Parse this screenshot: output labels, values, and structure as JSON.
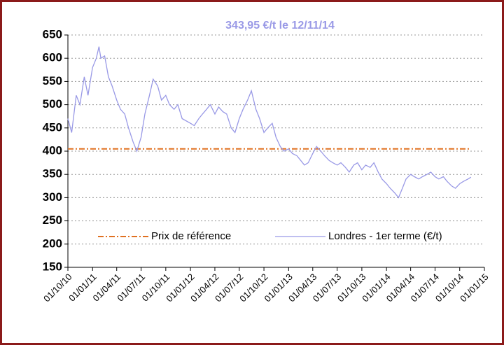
{
  "chart_data": {
    "type": "line",
    "title": "343,95 €/t le 12/11/14",
    "xlim": [
      "01/10/10",
      "01/01/15"
    ],
    "xticks": [
      "01/10/10",
      "01/01/11",
      "01/04/11",
      "01/07/11",
      "01/10/11",
      "01/01/12",
      "01/04/12",
      "01/07/12",
      "01/10/12",
      "01/01/13",
      "01/04/13",
      "01/07/13",
      "01/10/13",
      "01/01/14",
      "01/04/14",
      "01/07/14",
      "01/10/14",
      "01/01/15"
    ],
    "ylim": [
      150,
      650
    ],
    "yticks": [
      150,
      200,
      250,
      300,
      350,
      400,
      450,
      500,
      550,
      600,
      650
    ],
    "grid": true,
    "series": [
      {
        "name": "Prix de référence",
        "color": "#e07020",
        "dash": "dash-dot",
        "x": [
          "01/10/10",
          "12/11/14"
        ],
        "values": [
          405,
          405
        ]
      },
      {
        "name": "Londres - 1er terme (€/t)",
        "color": "#9999e6",
        "x": [
          "01/10/10",
          "15/10/10",
          "01/11/10",
          "15/11/10",
          "01/12/10",
          "15/12/10",
          "01/01/11",
          "15/01/11",
          "25/01/11",
          "01/02/11",
          "15/02/11",
          "01/03/11",
          "15/03/11",
          "01/04/11",
          "15/04/11",
          "01/05/11",
          "15/05/11",
          "01/06/11",
          "15/06/11",
          "01/07/11",
          "15/07/11",
          "01/08/11",
          "15/08/11",
          "01/09/11",
          "15/09/11",
          "01/10/11",
          "15/10/11",
          "01/11/11",
          "15/11/11",
          "01/12/11",
          "01/01/12",
          "15/01/12",
          "01/02/12",
          "15/02/12",
          "01/03/12",
          "15/03/12",
          "01/04/12",
          "15/04/12",
          "01/05/12",
          "15/05/12",
          "01/06/12",
          "15/06/12",
          "01/07/12",
          "15/07/12",
          "01/08/12",
          "15/08/12",
          "01/09/12",
          "15/09/12",
          "01/10/12",
          "15/10/12",
          "01/11/12",
          "15/11/12",
          "01/12/12",
          "15/12/12",
          "01/01/13",
          "15/01/13",
          "01/02/13",
          "15/02/13",
          "01/03/13",
          "15/03/13",
          "01/04/13",
          "15/04/13",
          "01/05/13",
          "15/05/13",
          "01/06/13",
          "15/06/13",
          "01/07/13",
          "15/07/13",
          "01/08/13",
          "15/08/13",
          "01/09/13",
          "15/09/13",
          "01/10/13",
          "15/10/13",
          "01/11/13",
          "15/11/13",
          "01/12/13",
          "15/12/13",
          "01/01/14",
          "15/01/14",
          "01/02/14",
          "15/02/14",
          "01/03/14",
          "15/03/14",
          "01/04/14",
          "15/04/14",
          "01/05/14",
          "15/05/14",
          "01/06/14",
          "15/06/14",
          "01/07/14",
          "15/07/14",
          "01/08/14",
          "15/08/14",
          "01/09/14",
          "15/09/14",
          "01/10/14",
          "15/10/14",
          "01/11/14",
          "12/11/14"
        ],
        "values": [
          470,
          440,
          520,
          500,
          560,
          520,
          580,
          600,
          625,
          600,
          605,
          560,
          540,
          510,
          490,
          480,
          450,
          420,
          400,
          430,
          480,
          520,
          555,
          540,
          510,
          520,
          500,
          490,
          500,
          470,
          460,
          455,
          470,
          480,
          490,
          500,
          480,
          495,
          485,
          480,
          450,
          440,
          470,
          490,
          510,
          530,
          490,
          470,
          440,
          450,
          460,
          430,
          410,
          400,
          405,
          395,
          390,
          380,
          370,
          375,
          395,
          410,
          400,
          390,
          380,
          375,
          370,
          375,
          365,
          355,
          370,
          375,
          360,
          370,
          365,
          375,
          355,
          340,
          330,
          320,
          310,
          300,
          320,
          340,
          350,
          345,
          340,
          345,
          350,
          355,
          345,
          340,
          345,
          335,
          325,
          320,
          330,
          335,
          340,
          343.95
        ]
      }
    ]
  }
}
